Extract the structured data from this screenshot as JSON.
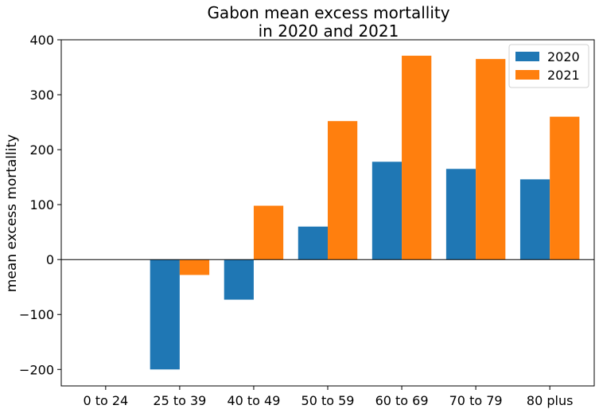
{
  "chart_data": {
    "type": "bar",
    "title_lines": [
      "Gabon mean excess mortallity",
      "in 2020 and 2021"
    ],
    "xlabel": "",
    "ylabel": "mean excess mortallity",
    "categories": [
      "0 to 24",
      "25 to 39",
      "40 to 49",
      "50 to 59",
      "60 to 69",
      "70 to 79",
      "80 plus"
    ],
    "series": [
      {
        "name": "2020",
        "color": "#1f77b4",
        "values": [
          0,
          -200,
          -73,
          60,
          178,
          165,
          146
        ]
      },
      {
        "name": "2021",
        "color": "#ff7f0e",
        "values": [
          0,
          -28,
          98,
          252,
          371,
          365,
          260
        ]
      }
    ],
    "ylim": [
      -230,
      400
    ],
    "yticks": [
      -200,
      -100,
      0,
      100,
      200,
      300,
      400
    ],
    "ytick_labels": [
      "−200",
      "−100",
      "0",
      "100",
      "200",
      "300",
      "400"
    ],
    "zero_line": true,
    "grid": false,
    "legend_position": "top-right"
  }
}
